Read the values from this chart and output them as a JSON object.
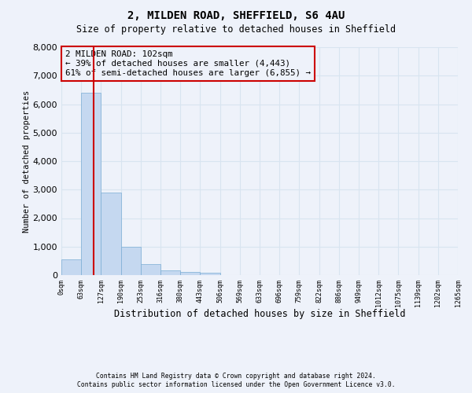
{
  "title1": "2, MILDEN ROAD, SHEFFIELD, S6 4AU",
  "title2": "Size of property relative to detached houses in Sheffield",
  "xlabel": "Distribution of detached houses by size in Sheffield",
  "ylabel": "Number of detached properties",
  "annotation_line1": "2 MILDEN ROAD: 102sqm",
  "annotation_line2": "← 39% of detached houses are smaller (4,443)",
  "annotation_line3": "61% of semi-detached houses are larger (6,855) →",
  "footnote1": "Contains HM Land Registry data © Crown copyright and database right 2024.",
  "footnote2": "Contains public sector information licensed under the Open Government Licence v3.0.",
  "property_size_idx": 1.615,
  "bin_labels": [
    "0sqm",
    "63sqm",
    "127sqm",
    "190sqm",
    "253sqm",
    "316sqm",
    "380sqm",
    "443sqm",
    "506sqm",
    "569sqm",
    "633sqm",
    "696sqm",
    "759sqm",
    "822sqm",
    "886sqm",
    "949sqm",
    "1012sqm",
    "1075sqm",
    "1139sqm",
    "1202sqm",
    "1265sqm"
  ],
  "bar_values": [
    560,
    6400,
    2900,
    1000,
    380,
    170,
    110,
    80,
    0,
    0,
    0,
    0,
    0,
    0,
    0,
    0,
    0,
    0,
    0,
    0
  ],
  "bar_color": "#c5d8f0",
  "bar_edgecolor": "#7aadd4",
  "red_line_color": "#cc0000",
  "annotation_box_edgecolor": "#cc0000",
  "background_color": "#eef2fa",
  "grid_color": "#d8e4f0",
  "ylim": [
    0,
    8000
  ],
  "yticks": [
    0,
    1000,
    2000,
    3000,
    4000,
    5000,
    6000,
    7000,
    8000
  ],
  "n_bins": 20
}
